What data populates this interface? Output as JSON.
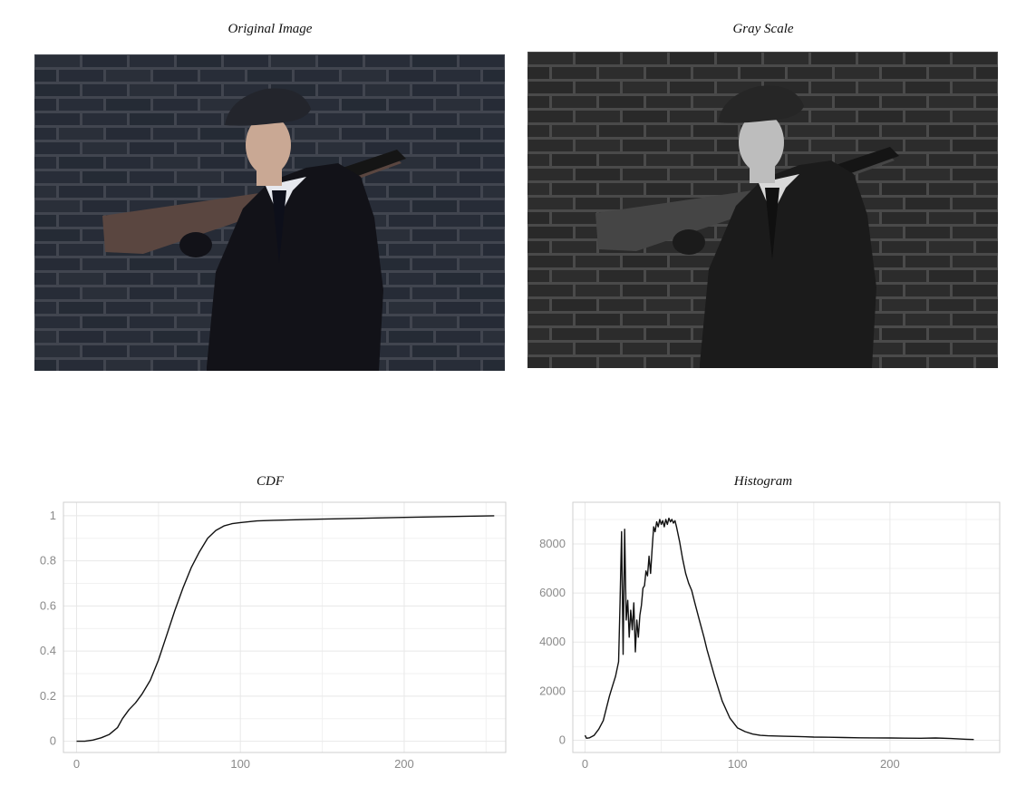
{
  "panels": {
    "original": {
      "title": "Original Image"
    },
    "gray": {
      "title": "Gray Scale"
    }
  },
  "colors": {
    "brick": "#2b313d",
    "brick_gray": "#2f2f2f",
    "mortar": "#4a4f5a",
    "mortar_gray": "#555555",
    "coat": "#121218",
    "coat_gray": "#1b1b1b",
    "gun_wood": "#5a4640",
    "gun_wood_gray": "#454545",
    "skin": "#c9a894",
    "skin_gray": "#bdbdbd",
    "line": "#111111",
    "grid": "#e8e8e8",
    "axis": "#cfcfcf"
  },
  "chart_data": [
    {
      "type": "line",
      "title": "CDF",
      "xlim": [
        -8,
        262
      ],
      "ylim": [
        -0.05,
        1.06
      ],
      "xticks": [
        0,
        100,
        200
      ],
      "yticks": [
        0,
        0.2,
        0.4,
        0.6,
        0.8,
        1
      ],
      "ytick_labels": [
        "0",
        "0.2",
        "0.4",
        "0.6",
        "0.8",
        "1"
      ],
      "grid": true,
      "series": [
        {
          "x": [
            0,
            5,
            10,
            15,
            20,
            25,
            28,
            32,
            36,
            40,
            45,
            50,
            55,
            60,
            65,
            70,
            75,
            80,
            85,
            90,
            95,
            100,
            110,
            120,
            150,
            200,
            255
          ],
          "y": [
            0,
            0.0,
            0.005,
            0.015,
            0.03,
            0.06,
            0.1,
            0.14,
            0.17,
            0.21,
            0.27,
            0.36,
            0.47,
            0.58,
            0.68,
            0.77,
            0.84,
            0.9,
            0.935,
            0.955,
            0.965,
            0.97,
            0.977,
            0.98,
            0.985,
            0.993,
            1.0
          ]
        }
      ]
    },
    {
      "type": "line",
      "title": "Histogram",
      "xlim": [
        -8,
        272
      ],
      "ylim": [
        -500,
        9700
      ],
      "xticks": [
        0,
        100,
        200
      ],
      "yticks": [
        0,
        2000,
        4000,
        6000,
        8000
      ],
      "grid": true,
      "series": [
        {
          "x": [
            0,
            1,
            3,
            6,
            9,
            12,
            14,
            16,
            18,
            20,
            21,
            22,
            23,
            24,
            25,
            26,
            27,
            28,
            29,
            30,
            31,
            32,
            33,
            34,
            35,
            36,
            37,
            38,
            39,
            40,
            41,
            42,
            43,
            44,
            45,
            46,
            47,
            48,
            49,
            50,
            51,
            52,
            53,
            54,
            55,
            56,
            57,
            58,
            59,
            60,
            62,
            64,
            66,
            68,
            70,
            72,
            75,
            78,
            80,
            85,
            90,
            95,
            100,
            105,
            110,
            115,
            120,
            130,
            140,
            150,
            160,
            170,
            180,
            190,
            200,
            210,
            220,
            230,
            240,
            250,
            255
          ],
          "y": [
            200,
            80,
            100,
            200,
            450,
            800,
            1300,
            1800,
            2200,
            2600,
            2900,
            3200,
            5600,
            8500,
            3500,
            8600,
            4900,
            5700,
            4200,
            5300,
            4500,
            5600,
            3600,
            4900,
            4200,
            5100,
            5500,
            6200,
            6300,
            6900,
            6700,
            7500,
            6800,
            7800,
            8700,
            8500,
            8900,
            8700,
            9000,
            8800,
            8950,
            8700,
            9000,
            8800,
            9050,
            8900,
            9000,
            8850,
            8950,
            8700,
            8100,
            7400,
            6800,
            6400,
            6100,
            5600,
            4900,
            4200,
            3700,
            2600,
            1600,
            900,
            500,
            350,
            250,
            200,
            180,
            160,
            150,
            130,
            120,
            110,
            100,
            95,
            90,
            85,
            80,
            90,
            70,
            40,
            30
          ]
        }
      ]
    }
  ]
}
